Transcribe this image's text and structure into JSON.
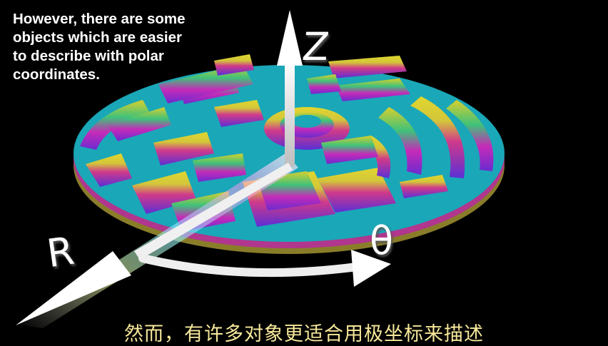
{
  "caption": {
    "lines": [
      "However, there are some",
      "objects which are easier",
      "to describe with polar",
      "coordinates."
    ]
  },
  "subtitle": "然而，有许多对象更适合用极坐标来描述",
  "axes": {
    "z_label": "Z",
    "r_label": "R",
    "theta_label": "θ"
  },
  "colors": {
    "background": "#000000",
    "disc_base": "#1aa7b8",
    "yellow": "#d8cf2e",
    "green": "#3fc27a",
    "magenta": "#c52bb8",
    "purple": "#6a2bd0",
    "arrow": "#f2f2f2"
  }
}
